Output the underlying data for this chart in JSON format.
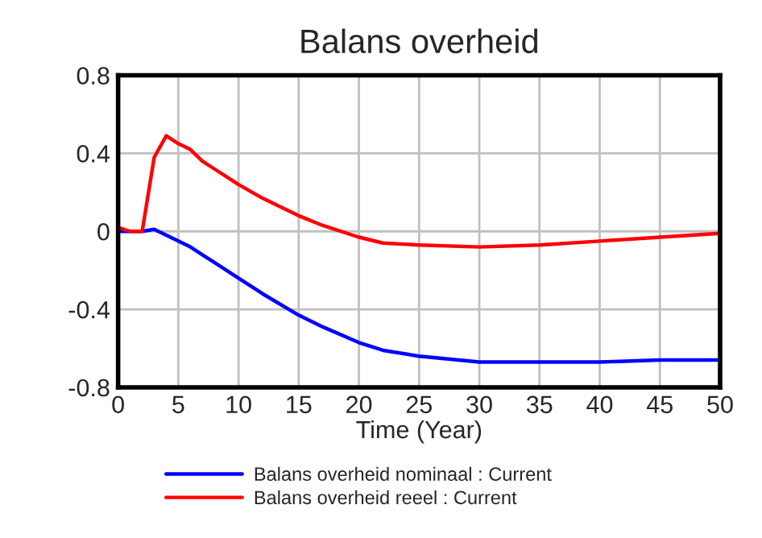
{
  "chart_data": {
    "type": "line",
    "title": "Balans overheid",
    "xlabel": "Time (Year)",
    "x": [
      0,
      1,
      2,
      3,
      4,
      5,
      6,
      7,
      8,
      10,
      12,
      15,
      17,
      20,
      22,
      25,
      30,
      35,
      40,
      45,
      50
    ],
    "series": [
      {
        "name": "Balans overheid nominaal : Current",
        "color": "#0000ff",
        "values": [
          0,
          0,
          0,
          0.01,
          -0.02,
          -0.05,
          -0.08,
          -0.12,
          -0.16,
          -0.24,
          -0.32,
          -0.43,
          -0.49,
          -0.57,
          -0.61,
          -0.64,
          -0.67,
          -0.67,
          -0.67,
          -0.66,
          -0.66
        ]
      },
      {
        "name": "Balans overheid reeel : Current",
        "color": "#ff0000",
        "values": [
          0.02,
          0,
          0,
          0.38,
          0.49,
          0.45,
          0.42,
          0.36,
          0.32,
          0.24,
          0.17,
          0.08,
          0.03,
          -0.03,
          -0.06,
          -0.07,
          -0.08,
          -0.07,
          -0.05,
          -0.03,
          -0.01
        ]
      }
    ],
    "xlim": [
      0,
      50
    ],
    "xticks": [
      0,
      5,
      10,
      15,
      20,
      25,
      30,
      35,
      40,
      45,
      50
    ],
    "ylim": [
      -0.8,
      0.8
    ],
    "yticks": [
      -0.8,
      -0.4,
      0,
      0.4,
      0.8
    ],
    "grid": true,
    "legend": "bottom",
    "marker": "none",
    "line_style": "solid"
  }
}
